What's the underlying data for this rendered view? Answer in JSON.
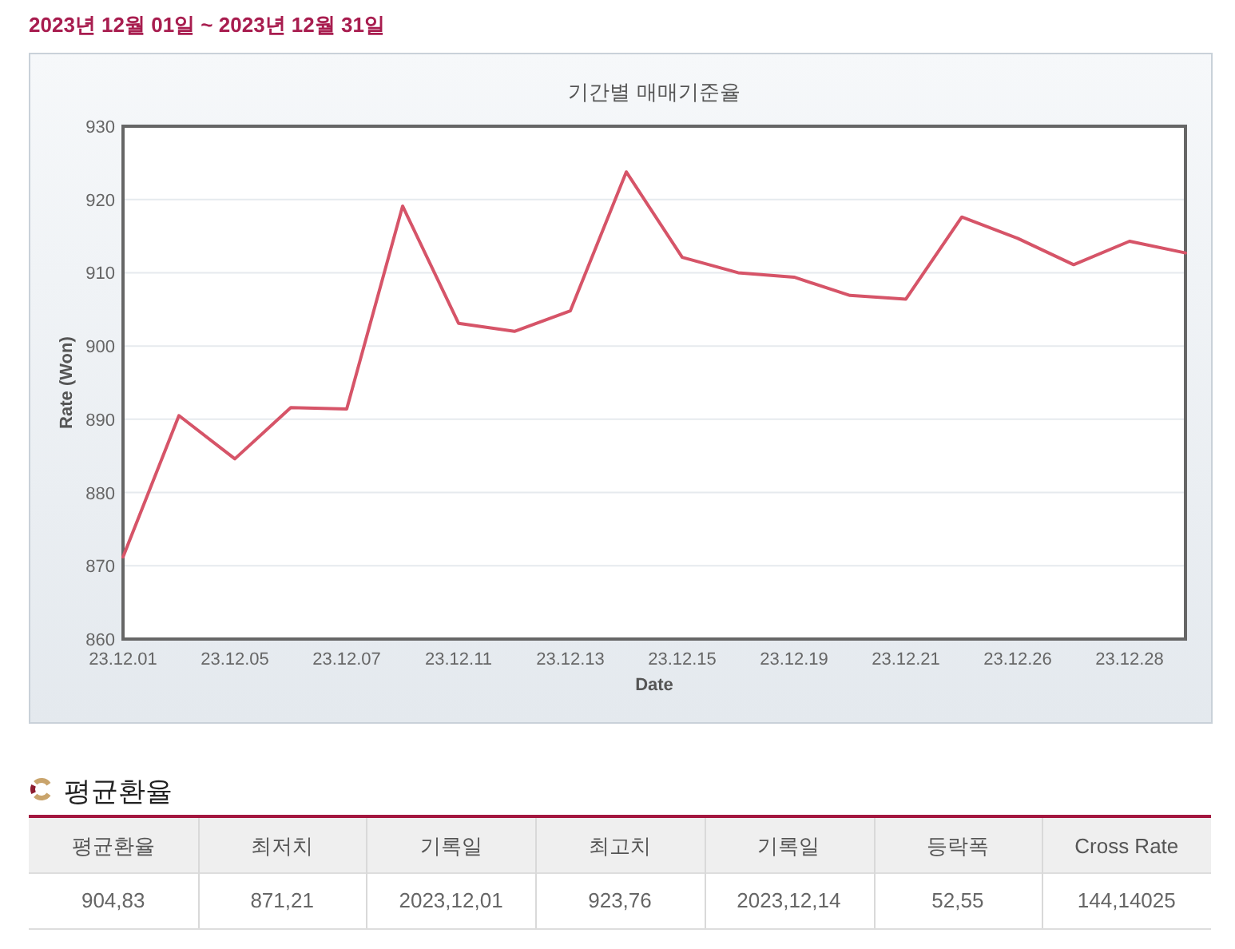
{
  "chart_data": [
    {
      "type": "line",
      "title": "기간별 매매기준율",
      "subtitle": "2023년 12월 01일 ~ 2023년 12월 31일",
      "xlabel": "Date",
      "ylabel": "Rate (Won)",
      "categories": [
        "23.12.01",
        null,
        "23.12.05",
        null,
        "23.12.07",
        null,
        "23.12.11",
        null,
        "23.12.13",
        null,
        "23.12.15",
        null,
        "23.12.19",
        null,
        "23.12.21",
        null,
        "23.12.26",
        null,
        "23.12.28",
        null
      ],
      "series": [
        {
          "color": "#d65468",
          "values": [
            871.21,
            890.5,
            884.6,
            891.6,
            891.4,
            919.1,
            903.1,
            902.0,
            904.8,
            923.76,
            912.1,
            910.0,
            909.4,
            906.9,
            906.4,
            917.6,
            914.7,
            911.1,
            914.3,
            912.7
          ]
        }
      ],
      "ylim": [
        860,
        930
      ],
      "yticks": [
        860,
        870,
        880,
        890,
        900,
        910,
        920,
        930
      ],
      "grid": "y"
    },
    {
      "type": "other",
      "title": "평균환율",
      "annotations": [
        "평균환율",
        "최저치",
        "기록일",
        "최고치",
        "기록일",
        "등락폭",
        "Cross Rate",
        "904,83",
        "871,21",
        "2023,12,01",
        "923,76",
        "2023,12,14",
        "52,55",
        "144,14025"
      ]
    }
  ]
}
